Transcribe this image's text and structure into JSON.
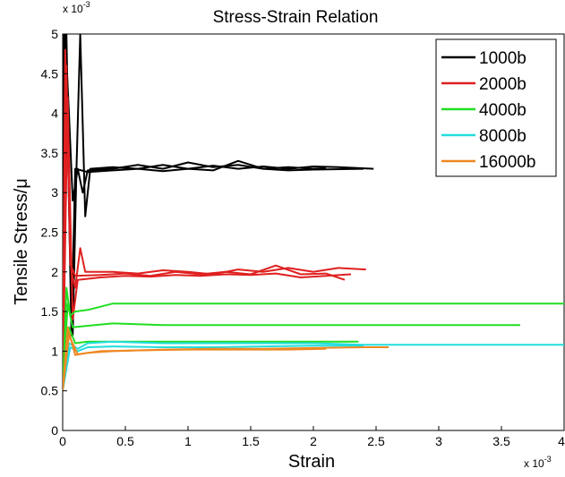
{
  "chart_data": {
    "type": "line",
    "title": "Stress-Strain Relation",
    "xlabel": "Strain",
    "ylabel": "Tensile Stress/μ",
    "x_multiplier": "x 10",
    "x_exponent": "-3",
    "y_multiplier": "x 10",
    "y_exponent": "-3",
    "xlim": [
      0,
      4
    ],
    "ylim": [
      0,
      5
    ],
    "xticks": [
      0,
      0.5,
      1,
      1.5,
      2,
      2.5,
      3,
      3.5,
      4
    ],
    "yticks": [
      0,
      0.5,
      1,
      1.5,
      2,
      2.5,
      3,
      3.5,
      4,
      4.5,
      5
    ],
    "xtick_labels": [
      "0",
      "0.5",
      "1",
      "1.5",
      "2",
      "2.5",
      "3",
      "3.5",
      "4"
    ],
    "ytick_labels": [
      "0",
      "0.5",
      "1",
      "1.5",
      "2",
      "2.5",
      "3",
      "3.5",
      "4",
      "4.5",
      "5"
    ],
    "legend_position": "top-right",
    "grid": false,
    "series": [
      {
        "name": "1000b",
        "color": "#000000",
        "lines": [
          [
            [
              0,
              0.5
            ],
            [
              0.01,
              5
            ],
            [
              0.03,
              5
            ],
            [
              0.05,
              3.3
            ],
            [
              0.08,
              1.2
            ],
            [
              0.11,
              3.3
            ],
            [
              0.14,
              5
            ],
            [
              0.18,
              2.7
            ],
            [
              0.22,
              3.3
            ],
            [
              0.4,
              3.32
            ],
            [
              0.6,
              3.3
            ],
            [
              0.8,
              3.35
            ],
            [
              1.0,
              3.3
            ],
            [
              1.2,
              3.34
            ],
            [
              1.4,
              3.3
            ],
            [
              1.6,
              3.33
            ],
            [
              1.8,
              3.3
            ],
            [
              2.0,
              3.33
            ],
            [
              2.2,
              3.32
            ],
            [
              2.48,
              3.3
            ]
          ],
          [
            [
              0,
              0.5
            ],
            [
              0.02,
              5
            ],
            [
              0.05,
              4
            ],
            [
              0.08,
              2.9
            ],
            [
              0.12,
              3.3
            ],
            [
              0.16,
              3.0
            ],
            [
              0.2,
              3.28
            ],
            [
              0.4,
              3.3
            ],
            [
              0.6,
              3.35
            ],
            [
              0.8,
              3.3
            ],
            [
              1.0,
              3.38
            ],
            [
              1.2,
              3.32
            ],
            [
              1.4,
              3.35
            ],
            [
              1.6,
              3.3
            ],
            [
              1.8,
              3.32
            ],
            [
              2.0,
              3.3
            ],
            [
              2.1,
              3.31
            ]
          ],
          [
            [
              0,
              0.5
            ],
            [
              0.03,
              4.5
            ],
            [
              0.07,
              1.2
            ],
            [
              0.1,
              3.3
            ],
            [
              0.2,
              3.26
            ],
            [
              0.4,
              3.28
            ],
            [
              0.6,
              3.3
            ],
            [
              0.8,
              3.27
            ],
            [
              1.0,
              3.3
            ],
            [
              1.2,
              3.28
            ],
            [
              1.4,
              3.4
            ],
            [
              1.6,
              3.3
            ],
            [
              1.8,
              3.28
            ],
            [
              2.0,
              3.29
            ],
            [
              2.4,
              3.3
            ]
          ]
        ]
      },
      {
        "name": "2000b",
        "color": "#e02020",
        "lines": [
          [
            [
              0,
              0.5
            ],
            [
              0.02,
              4.8
            ],
            [
              0.04,
              3.5
            ],
            [
              0.07,
              2.0
            ],
            [
              0.1,
              1.8
            ],
            [
              0.14,
              2.3
            ],
            [
              0.18,
              2.0
            ],
            [
              0.4,
              2.0
            ],
            [
              0.6,
              1.98
            ],
            [
              0.8,
              2.02
            ],
            [
              1.0,
              2.0
            ],
            [
              1.2,
              1.97
            ],
            [
              1.4,
              2.03
            ],
            [
              1.6,
              2.0
            ],
            [
              1.8,
              2.05
            ],
            [
              2.0,
              2.0
            ],
            [
              2.2,
              2.05
            ],
            [
              2.42,
              2.03
            ]
          ],
          [
            [
              0,
              0.5
            ],
            [
              0.03,
              4.6
            ],
            [
              0.06,
              2.1
            ],
            [
              0.1,
              1.95
            ],
            [
              0.3,
              1.96
            ],
            [
              0.5,
              1.98
            ],
            [
              0.7,
              1.95
            ],
            [
              0.9,
              2.0
            ],
            [
              1.1,
              1.97
            ],
            [
              1.3,
              2.0
            ],
            [
              1.5,
              1.97
            ],
            [
              1.7,
              2.08
            ],
            [
              1.9,
              1.97
            ],
            [
              2.1,
              1.98
            ],
            [
              2.25,
              1.9
            ]
          ],
          [
            [
              0,
              0.5
            ],
            [
              0.04,
              4.2
            ],
            [
              0.08,
              1.4
            ],
            [
              0.12,
              1.9
            ],
            [
              0.3,
              1.93
            ],
            [
              0.5,
              1.95
            ],
            [
              0.7,
              1.94
            ],
            [
              0.9,
              1.96
            ],
            [
              1.1,
              1.95
            ],
            [
              1.3,
              1.97
            ],
            [
              1.5,
              1.96
            ],
            [
              1.7,
              1.98
            ],
            [
              1.9,
              1.93
            ],
            [
              2.1,
              1.95
            ],
            [
              2.3,
              1.97
            ]
          ]
        ]
      },
      {
        "name": "4000b",
        "color": "#22dd22",
        "lines": [
          [
            [
              0,
              0.5
            ],
            [
              0.03,
              1.8
            ],
            [
              0.06,
              1.45
            ],
            [
              0.1,
              1.5
            ],
            [
              0.2,
              1.52
            ],
            [
              0.4,
              1.6
            ],
            [
              0.8,
              1.6
            ],
            [
              1.2,
              1.6
            ],
            [
              1.6,
              1.6
            ],
            [
              2.0,
              1.6
            ],
            [
              2.4,
              1.6
            ],
            [
              2.8,
              1.6
            ],
            [
              3.2,
              1.6
            ],
            [
              3.6,
              1.6
            ],
            [
              4.0,
              1.6
            ]
          ],
          [
            [
              0,
              0.5
            ],
            [
              0.04,
              1.6
            ],
            [
              0.08,
              1.3
            ],
            [
              0.2,
              1.32
            ],
            [
              0.4,
              1.35
            ],
            [
              0.8,
              1.33
            ],
            [
              1.2,
              1.33
            ],
            [
              1.6,
              1.33
            ],
            [
              2.0,
              1.33
            ],
            [
              2.4,
              1.33
            ],
            [
              2.8,
              1.33
            ],
            [
              3.2,
              1.33
            ],
            [
              3.65,
              1.33
            ]
          ],
          [
            [
              0,
              0.5
            ],
            [
              0.05,
              1.3
            ],
            [
              0.1,
              1.1
            ],
            [
              0.2,
              1.12
            ],
            [
              0.4,
              1.12
            ],
            [
              0.8,
              1.12
            ],
            [
              1.2,
              1.12
            ],
            [
              1.6,
              1.12
            ],
            [
              2.0,
              1.12
            ],
            [
              2.36,
              1.12
            ]
          ]
        ]
      },
      {
        "name": "8000b",
        "color": "#22dddd",
        "lines": [
          [
            [
              0,
              0.5
            ],
            [
              0.05,
              1.1
            ],
            [
              0.12,
              1.03
            ],
            [
              0.2,
              1.1
            ],
            [
              0.4,
              1.12
            ],
            [
              0.8,
              1.1
            ],
            [
              1.2,
              1.1
            ],
            [
              1.6,
              1.1
            ],
            [
              2.0,
              1.1
            ],
            [
              2.4,
              1.08
            ],
            [
              2.8,
              1.08
            ],
            [
              3.2,
              1.08
            ],
            [
              3.6,
              1.08
            ],
            [
              4.0,
              1.08
            ]
          ],
          [
            [
              0,
              0.5
            ],
            [
              0.06,
              1.05
            ],
            [
              0.12,
              1.0
            ],
            [
              0.2,
              1.05
            ],
            [
              0.4,
              1.06
            ],
            [
              0.8,
              1.05
            ],
            [
              1.2,
              1.05
            ],
            [
              1.6,
              1.06
            ],
            [
              2.0,
              1.07
            ],
            [
              2.4,
              1.07
            ]
          ]
        ]
      },
      {
        "name": "16000b",
        "color": "#ee8822",
        "lines": [
          [
            [
              0,
              0.5
            ],
            [
              0.04,
              1.3
            ],
            [
              0.1,
              0.95
            ],
            [
              0.2,
              0.98
            ],
            [
              0.4,
              1.0
            ],
            [
              0.8,
              1.02
            ],
            [
              1.2,
              1.03
            ],
            [
              1.6,
              1.03
            ],
            [
              2.0,
              1.04
            ],
            [
              2.4,
              1.05
            ],
            [
              2.6,
              1.05
            ]
          ],
          [
            [
              0,
              0.5
            ],
            [
              0.05,
              1.2
            ],
            [
              0.12,
              0.96
            ],
            [
              0.3,
              1.0
            ],
            [
              0.6,
              1.01
            ],
            [
              1.0,
              1.02
            ],
            [
              1.4,
              1.02
            ],
            [
              1.8,
              1.02
            ],
            [
              2.1,
              1.03
            ]
          ]
        ]
      }
    ]
  }
}
